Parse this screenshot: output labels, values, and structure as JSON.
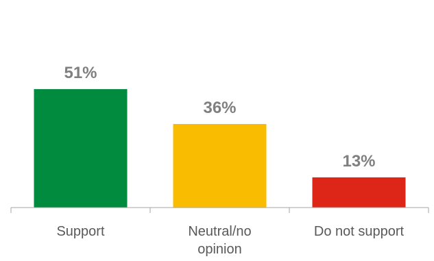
{
  "chart_data": {
    "type": "bar",
    "categories": [
      "Support",
      "Neutral/no opinion",
      "Do not support"
    ],
    "category_lines": [
      [
        "Support"
      ],
      [
        "Neutral/no",
        "opinion"
      ],
      [
        "Do not support"
      ]
    ],
    "values": [
      51,
      36,
      13
    ],
    "value_labels": [
      "51%",
      "36%",
      "13%"
    ],
    "colors": [
      "#008b3e",
      "#f9bc00",
      "#de2618"
    ],
    "ylim": [
      0,
      60
    ],
    "title": "",
    "xlabel": "",
    "ylabel": "",
    "grid": false,
    "legend": "none"
  }
}
